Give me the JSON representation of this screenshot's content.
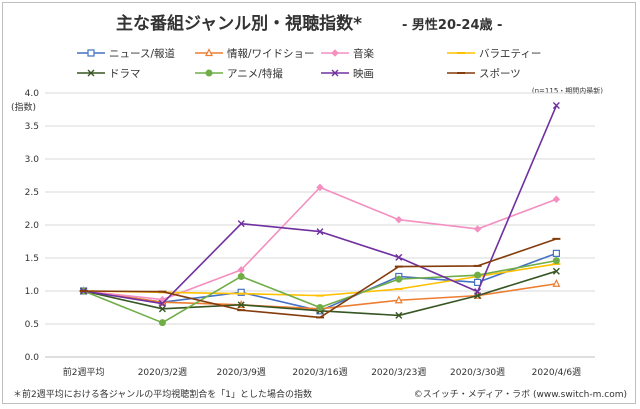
{
  "chart_data": {
    "type": "line",
    "title": "主な番組ジャンル別・視聴指数*",
    "subtitle": "- 男性20-24歳 -",
    "ylabel": "(指数)",
    "note": "(n=115・期間内最新)",
    "footnote": "＊前2週平均における各ジャンルの平均視聴割合を「1」とした場合の指数",
    "credit": "©スイッチ・メディア・ラボ (www.switch-m.com)",
    "categories": [
      "前2週平均",
      "2020/3/2週",
      "2020/3/9週",
      "2020/3/16週",
      "2020/3/23週",
      "2020/3/30週",
      "2020/4/6週"
    ],
    "ylim": [
      0,
      4
    ],
    "yticks": [
      "0.0",
      "0.5",
      "1.0",
      "1.5",
      "2.0",
      "2.5",
      "3.0",
      "3.5",
      "4.0"
    ],
    "grid": true,
    "legend_position": "top",
    "series": [
      {
        "name": "ニュース/報道",
        "color": "#4472c4",
        "marker": "square",
        "values": [
          1.0,
          0.83,
          0.98,
          0.7,
          1.22,
          1.13,
          1.57
        ]
      },
      {
        "name": "情報/ワイドショー",
        "color": "#ed7d31",
        "marker": "triangle",
        "values": [
          1.0,
          0.83,
          0.79,
          0.73,
          0.86,
          0.93,
          1.11
        ]
      },
      {
        "name": "音楽",
        "color": "#f48fc0",
        "marker": "diamond",
        "values": [
          1.0,
          0.87,
          1.32,
          2.57,
          2.08,
          1.94,
          2.39
        ]
      },
      {
        "name": "バラエティー",
        "color": "#ffc000",
        "marker": "dash",
        "values": [
          1.0,
          0.98,
          0.96,
          0.93,
          1.03,
          1.22,
          1.41
        ]
      },
      {
        "name": "ドラマ",
        "color": "#375623",
        "marker": "x",
        "values": [
          1.0,
          0.73,
          0.79,
          0.7,
          0.63,
          0.93,
          1.3
        ]
      },
      {
        "name": "アニメ/特撮",
        "color": "#70ad47",
        "marker": "circle",
        "values": [
          1.0,
          0.52,
          1.22,
          0.75,
          1.18,
          1.24,
          1.46
        ]
      },
      {
        "name": "映画",
        "color": "#7030a0",
        "marker": "x",
        "values": [
          1.0,
          0.81,
          2.02,
          1.9,
          1.51,
          0.99,
          3.81
        ]
      },
      {
        "name": "スポーツ",
        "color": "#843c0c",
        "marker": "dash",
        "values": [
          1.0,
          0.99,
          0.71,
          0.6,
          1.37,
          1.38,
          1.79
        ]
      }
    ]
  }
}
